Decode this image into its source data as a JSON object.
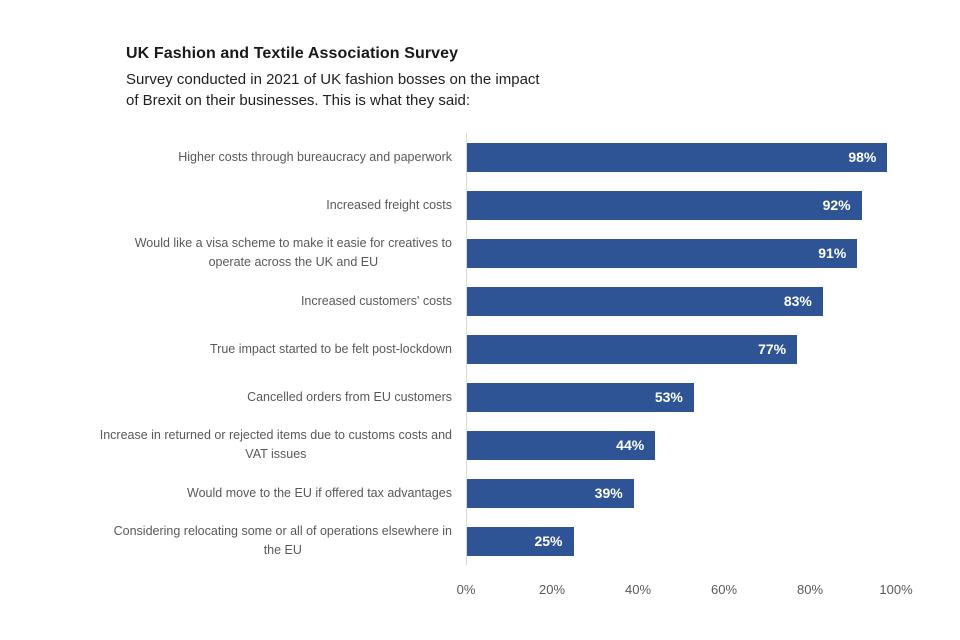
{
  "header": {
    "title": "UK Fashion and Textile Association Survey",
    "subtitle_line1": "Survey conducted in 2021 of UK fashion bosses on the impact",
    "subtitle_line2": "of Brexit on their businesses. This is what they said:"
  },
  "chart_data": {
    "type": "bar",
    "orientation": "horizontal",
    "title": "UK Fashion and Textile Association Survey",
    "subtitle": "Survey conducted in 2021 of UK fashion bosses on the impact of Brexit on their businesses. This is what they said:",
    "categories": [
      "Higher costs through bureaucracy and paperwork",
      "Increased freight costs",
      "Would like a visa scheme to make it easie for creatives to operate across the UK and EU",
      "Increased customers' costs",
      "True impact started to be felt post-lockdown",
      "Cancelled orders from EU customers",
      "Increase in returned or rejected items due to customs costs and VAT issues",
      "Would move to the EU if offered tax advantages",
      "Considering relocating some or all of operations elsewhere in the EU"
    ],
    "category_display_lines": [
      [
        "Higher costs through bureaucracy and paperwork"
      ],
      [
        "Increased freight costs"
      ],
      [
        "Would like a visa scheme to make it easie for creatives to",
        "operate across the UK and EU"
      ],
      [
        "Increased customers' costs"
      ],
      [
        "True impact started to be felt post-lockdown"
      ],
      [
        "Cancelled orders from EU customers"
      ],
      [
        "Increase in returned or rejected items due to customs costs and",
        "VAT issues"
      ],
      [
        "Would move to the EU if offered tax advantages"
      ],
      [
        "Considering relocating some or all of operations elsewhere in",
        "the EU"
      ]
    ],
    "values": [
      98,
      92,
      91,
      83,
      77,
      53,
      44,
      39,
      25
    ],
    "value_labels": [
      "98%",
      "92%",
      "91%",
      "83%",
      "77%",
      "53%",
      "44%",
      "39%",
      "25%"
    ],
    "unit": "%",
    "xlabel": "",
    "ylabel": "",
    "xlim": [
      0,
      100
    ],
    "x_ticks": [
      "0%",
      "20%",
      "40%",
      "60%",
      "80%",
      "100%"
    ],
    "grid": false,
    "legend": false,
    "value_label_position": "inside-end",
    "colors": {
      "bar": "#2F5496",
      "value_label": "#FFFFFF",
      "category_label": "#595959",
      "tick_label": "#595959",
      "axis_line": "#D9D9D9",
      "background": "#FFFFFF"
    }
  }
}
